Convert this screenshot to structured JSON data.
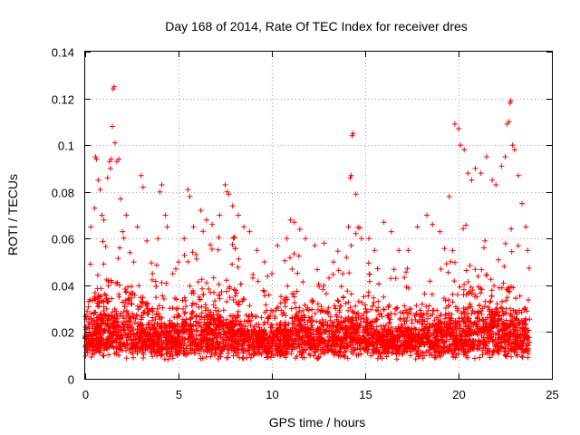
{
  "chart_data": {
    "type": "scatter",
    "title": "Day 168 of 2014, Rate Of TEC Index for receiver dres",
    "xlabel": "GPS time / hours",
    "ylabel": "ROTI / TECUs",
    "xlim": [
      0,
      25
    ],
    "ylim": [
      0,
      0.14
    ],
    "xticks": [
      0,
      5,
      10,
      15,
      20,
      25
    ],
    "yticks": [
      0,
      0.02,
      0.04,
      0.06,
      0.08,
      0.1,
      0.12,
      0.14
    ],
    "x_tick_labels": [
      "0",
      "5",
      "10",
      "15",
      "20",
      "25"
    ],
    "y_tick_labels": [
      "0",
      "0.02",
      "0.04",
      "0.06",
      "0.08",
      "0.1",
      "0.12",
      "0.14"
    ],
    "grid": true,
    "marker": "+",
    "color": "#ff0000",
    "series": [
      {
        "name": "ROTI",
        "points": [
          [
            0.1,
            0.029
          ],
          [
            0.3,
            0.028
          ],
          [
            0.3,
            0.065
          ],
          [
            0.5,
            0.073
          ],
          [
            0.55,
            0.095
          ],
          [
            0.6,
            0.094
          ],
          [
            0.7,
            0.085
          ],
          [
            0.8,
            0.081
          ],
          [
            0.9,
            0.07
          ],
          [
            1.0,
            0.068
          ],
          [
            1.2,
            0.086
          ],
          [
            1.3,
            0.093
          ],
          [
            1.35,
            0.09
          ],
          [
            1.4,
            0.094
          ],
          [
            1.45,
            0.108
          ],
          [
            1.5,
            0.124
          ],
          [
            1.55,
            0.125
          ],
          [
            1.6,
            0.101
          ],
          [
            1.7,
            0.093
          ],
          [
            1.8,
            0.094
          ],
          [
            1.9,
            0.077
          ],
          [
            2.0,
            0.063
          ],
          [
            2.2,
            0.07
          ],
          [
            2.4,
            0.054
          ],
          [
            2.6,
            0.05
          ],
          [
            2.8,
            0.065
          ],
          [
            3.0,
            0.087
          ],
          [
            3.1,
            0.082
          ],
          [
            3.3,
            0.059
          ],
          [
            3.6,
            0.045
          ],
          [
            3.9,
            0.06
          ],
          [
            4.0,
            0.08
          ],
          [
            4.1,
            0.083
          ],
          [
            4.3,
            0.07
          ],
          [
            4.4,
            0.065
          ],
          [
            4.7,
            0.045
          ],
          [
            5.0,
            0.05
          ],
          [
            5.3,
            0.06
          ],
          [
            5.5,
            0.081
          ],
          [
            5.6,
            0.078
          ],
          [
            5.8,
            0.065
          ],
          [
            6.2,
            0.072
          ],
          [
            6.5,
            0.068
          ],
          [
            6.8,
            0.066
          ],
          [
            7.2,
            0.07
          ],
          [
            7.5,
            0.083
          ],
          [
            7.6,
            0.08
          ],
          [
            7.7,
            0.079
          ],
          [
            7.9,
            0.074
          ],
          [
            8.2,
            0.07
          ],
          [
            8.5,
            0.065
          ],
          [
            8.8,
            0.063
          ],
          [
            9.2,
            0.055
          ],
          [
            9.6,
            0.05
          ],
          [
            10.0,
            0.045
          ],
          [
            10.3,
            0.057
          ],
          [
            10.8,
            0.06
          ],
          [
            11.0,
            0.068
          ],
          [
            11.2,
            0.067
          ],
          [
            11.5,
            0.064
          ],
          [
            11.8,
            0.06
          ],
          [
            12.3,
            0.057
          ],
          [
            12.8,
            0.058
          ],
          [
            13.3,
            0.05
          ],
          [
            13.8,
            0.045
          ],
          [
            14.1,
            0.065
          ],
          [
            14.2,
            0.086
          ],
          [
            14.25,
            0.087
          ],
          [
            14.3,
            0.104
          ],
          [
            14.35,
            0.105
          ],
          [
            14.5,
            0.079
          ],
          [
            14.8,
            0.06
          ],
          [
            15.2,
            0.06
          ],
          [
            15.5,
            0.055
          ],
          [
            16.0,
            0.067
          ],
          [
            16.4,
            0.063
          ],
          [
            16.8,
            0.055
          ],
          [
            17.3,
            0.055
          ],
          [
            17.8,
            0.065
          ],
          [
            18.3,
            0.07
          ],
          [
            18.6,
            0.066
          ],
          [
            19.0,
            0.063
          ],
          [
            19.5,
            0.078
          ],
          [
            19.8,
            0.109
          ],
          [
            20.0,
            0.107
          ],
          [
            20.1,
            0.1
          ],
          [
            20.3,
            0.098
          ],
          [
            20.5,
            0.088
          ],
          [
            20.7,
            0.085
          ],
          [
            20.9,
            0.09
          ],
          [
            21.2,
            0.088
          ],
          [
            21.5,
            0.095
          ],
          [
            21.8,
            0.085
          ],
          [
            22.0,
            0.083
          ],
          [
            22.3,
            0.091
          ],
          [
            22.5,
            0.095
          ],
          [
            22.6,
            0.109
          ],
          [
            22.7,
            0.11
          ],
          [
            22.75,
            0.118
          ],
          [
            22.8,
            0.119
          ],
          [
            22.9,
            0.1
          ],
          [
            23.0,
            0.098
          ],
          [
            23.2,
            0.087
          ],
          [
            23.4,
            0.075
          ],
          [
            23.6,
            0.065
          ],
          [
            23.7,
            0.055
          ]
        ]
      }
    ],
    "dense_band": {
      "description": "dense cluster of ROTI points from 0 to 23.8 h",
      "x_range": [
        0,
        23.8
      ],
      "typical_range": [
        0.005,
        0.04
      ],
      "point_count": 4200
    }
  }
}
